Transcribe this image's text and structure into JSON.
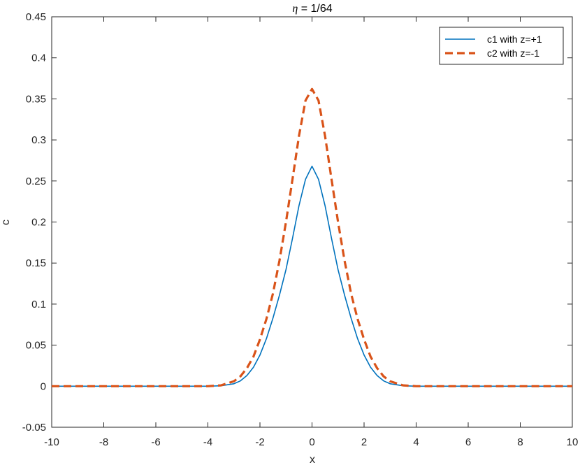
{
  "chart_data": {
    "type": "line",
    "title_symbol": "η",
    "title_rest": " = 1/64",
    "xlabel": "x",
    "ylabel": "c",
    "xlim": [
      -10,
      10
    ],
    "ylim": [
      -0.05,
      0.45
    ],
    "xticks": [
      -10,
      -8,
      -6,
      -4,
      -2,
      0,
      2,
      4,
      6,
      8,
      10
    ],
    "xtick_labels": [
      "-10",
      "-8",
      "-6",
      "-4",
      "-2",
      "0",
      "2",
      "4",
      "6",
      "8",
      "10"
    ],
    "yticks": [
      -0.05,
      0,
      0.05,
      0.1,
      0.15,
      0.2,
      0.25,
      0.3,
      0.35,
      0.4,
      0.45
    ],
    "ytick_labels": [
      "-0.05",
      "0",
      "0.05",
      "0.1",
      "0.15",
      "0.2",
      "0.25",
      "0.3",
      "0.35",
      "0.4",
      "0.45"
    ],
    "grid": false,
    "legend_position": "top-right",
    "series": [
      {
        "name": "c1 with z=+1",
        "color": "#0072BD",
        "style": "solid",
        "x": [
          -10,
          -4,
          -3.5,
          -3,
          -2.75,
          -2.5,
          -2.25,
          -2,
          -1.75,
          -1.5,
          -1.25,
          -1,
          -0.75,
          -0.5,
          -0.25,
          0,
          0.25,
          0.5,
          0.75,
          1,
          1.25,
          1.5,
          1.75,
          2,
          2.25,
          2.5,
          2.75,
          3,
          3.5,
          4,
          10
        ],
        "y": [
          0,
          0,
          0.0005,
          0.003,
          0.0065,
          0.013,
          0.023,
          0.038,
          0.058,
          0.083,
          0.111,
          0.142,
          0.18,
          0.22,
          0.252,
          0.268,
          0.252,
          0.22,
          0.18,
          0.142,
          0.111,
          0.083,
          0.058,
          0.038,
          0.023,
          0.013,
          0.0065,
          0.003,
          0.0005,
          0,
          0
        ]
      },
      {
        "name": "c2 with z=-1",
        "color": "#D95319",
        "style": "dashed",
        "x": [
          -10,
          -4,
          -3.5,
          -3,
          -2.75,
          -2.5,
          -2.25,
          -2,
          -1.75,
          -1.5,
          -1.25,
          -1,
          -0.75,
          -0.5,
          -0.25,
          0,
          0.25,
          0.5,
          0.75,
          1,
          1.25,
          1.5,
          1.75,
          2,
          2.25,
          2.5,
          2.75,
          3,
          3.5,
          4,
          10
        ],
        "y": [
          0,
          0,
          0.001,
          0.006,
          0.012,
          0.022,
          0.036,
          0.057,
          0.082,
          0.113,
          0.153,
          0.2,
          0.252,
          0.305,
          0.348,
          0.362,
          0.348,
          0.305,
          0.252,
          0.2,
          0.153,
          0.113,
          0.082,
          0.057,
          0.036,
          0.022,
          0.012,
          0.006,
          0.001,
          0,
          0
        ]
      }
    ]
  }
}
